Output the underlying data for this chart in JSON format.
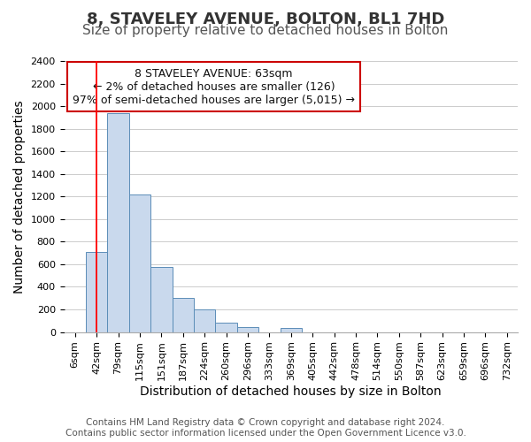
{
  "title": "8, STAVELEY AVENUE, BOLTON, BL1 7HD",
  "subtitle": "Size of property relative to detached houses in Bolton",
  "xlabel": "Distribution of detached houses by size in Bolton",
  "ylabel": "Number of detached properties",
  "bin_labels": [
    "6sqm",
    "42sqm",
    "79sqm",
    "115sqm",
    "151sqm",
    "187sqm",
    "224sqm",
    "260sqm",
    "296sqm",
    "333sqm",
    "369sqm",
    "405sqm",
    "442sqm",
    "478sqm",
    "514sqm",
    "550sqm",
    "587sqm",
    "623sqm",
    "659sqm",
    "696sqm",
    "732sqm"
  ],
  "bar_values": [
    0,
    710,
    1940,
    1220,
    580,
    300,
    200,
    80,
    45,
    0,
    35,
    0,
    0,
    0,
    0,
    0,
    0,
    0,
    0,
    0,
    0
  ],
  "bar_color": "#c9d9ed",
  "bar_edge_color": "#5b8db8",
  "ylim": [
    0,
    2400
  ],
  "yticks": [
    0,
    200,
    400,
    600,
    800,
    1000,
    1200,
    1400,
    1600,
    1800,
    2000,
    2200,
    2400
  ],
  "red_line_x": 1,
  "annotation_text_line1": "8 STAVELEY AVENUE: 63sqm",
  "annotation_text_line2": "← 2% of detached houses are smaller (126)",
  "annotation_text_line3": "97% of semi-detached houses are larger (5,015) →",
  "annotation_box_color": "#ffffff",
  "annotation_box_edge_color": "#cc0000",
  "footer_line1": "Contains HM Land Registry data © Crown copyright and database right 2024.",
  "footer_line2": "Contains public sector information licensed under the Open Government Licence v3.0.",
  "bg_color": "#ffffff",
  "grid_color": "#cccccc",
  "title_fontsize": 13,
  "subtitle_fontsize": 11,
  "axis_label_fontsize": 10,
  "tick_fontsize": 8,
  "annotation_fontsize": 9,
  "footer_fontsize": 7.5
}
